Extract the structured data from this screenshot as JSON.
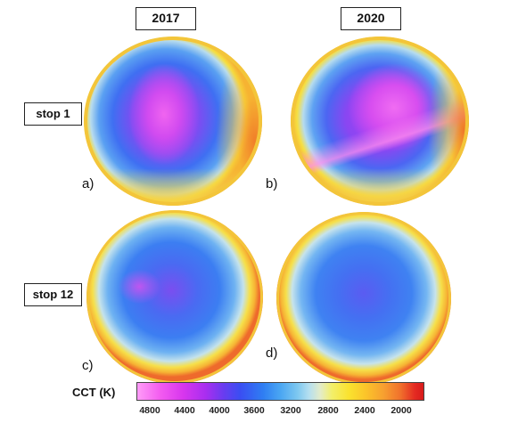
{
  "columns": [
    "2017",
    "2020"
  ],
  "rows": [
    "stop 1",
    "stop 12"
  ],
  "panels": [
    "a)",
    "b)",
    "c)",
    "d)"
  ],
  "legend": {
    "label": "CCT (K)",
    "ticks": [
      "4800",
      "4400",
      "4000",
      "3600",
      "3200",
      "2800",
      "2400",
      "2000"
    ]
  },
  "colors": {
    "pink": "#f06cf2",
    "magenta": "#c23cf0",
    "blue": "#3a78f2",
    "light_blue": "#9fd0f0",
    "yellow": "#f7df3a",
    "orange": "#f39a2c",
    "red": "#e43a24"
  }
}
